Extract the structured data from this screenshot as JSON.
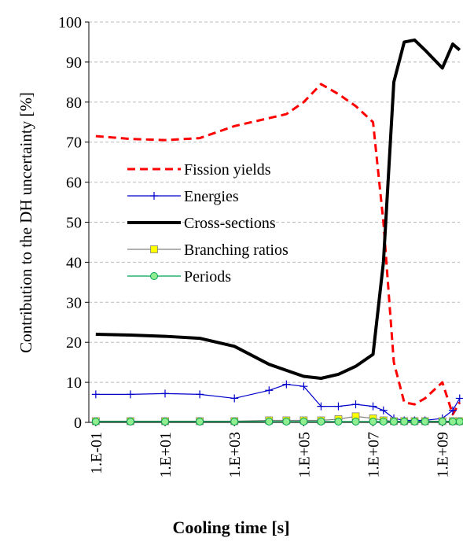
{
  "chart_data": {
    "type": "line",
    "xlabel": "Cooling time [s]",
    "ylabel": "Contribution to the DH uncertainty [%]",
    "x": [
      0.1,
      1,
      10,
      100,
      1000,
      10000,
      31623,
      100000,
      316228,
      1000000,
      3162278,
      10000000,
      19952623,
      39810717,
      79432823,
      158489319,
      316227766,
      1000000000,
      1995262315,
      3162277660
    ],
    "series": [
      {
        "name": "Fission yields",
        "color": "#ff0000",
        "style": "dashed",
        "marker": "none",
        "values": [
          71.5,
          70.8,
          70.5,
          71,
          74,
          76,
          77,
          80,
          84.5,
          82,
          79,
          75,
          50,
          15,
          5,
          4.5,
          6,
          10,
          2,
          5
        ]
      },
      {
        "name": "Energies",
        "color": "#0000cc",
        "style": "solid",
        "marker": "plus",
        "values": [
          7,
          7,
          7.2,
          7,
          6,
          8,
          9.5,
          9,
          4,
          4,
          4.5,
          4,
          3,
          1,
          0.5,
          0.5,
          0.5,
          1,
          3,
          6
        ]
      },
      {
        "name": "Cross-sections",
        "color": "#000000",
        "style": "bold",
        "marker": "none",
        "values": [
          22,
          21.8,
          21.5,
          21,
          19,
          14.5,
          13,
          11.5,
          11,
          12,
          14,
          17,
          40,
          85,
          95,
          95.5,
          93,
          88.5,
          94.5,
          93
        ]
      },
      {
        "name": "Branching ratios",
        "color": "#808080",
        "marker_color": "#ffff00",
        "style": "solid",
        "marker": "square",
        "values": [
          0.3,
          0.3,
          0.3,
          0.3,
          0.3,
          0.5,
          0.5,
          0.5,
          0.5,
          0.8,
          1.5,
          1,
          0.5,
          0.3,
          0.3,
          0.3,
          0.3,
          0.3,
          0.3,
          0.3
        ]
      },
      {
        "name": "Periods",
        "color": "#00a050",
        "marker_color": "#90ee90",
        "style": "solid",
        "marker": "circle",
        "values": [
          0.2,
          0.2,
          0.2,
          0.2,
          0.2,
          0.2,
          0.2,
          0.2,
          0.2,
          0.2,
          0.2,
          0.2,
          0.2,
          0.2,
          0.2,
          0.2,
          0.2,
          0.2,
          0.2,
          0.2
        ]
      }
    ],
    "xlog": true,
    "xlim": [
      0.063,
      3200000000
    ],
    "xticks": [
      {
        "value": 0.1,
        "label": "1.E-01"
      },
      {
        "value": 10,
        "label": "1.E+01"
      },
      {
        "value": 1000,
        "label": "1.E+03"
      },
      {
        "value": 100000,
        "label": "1.E+05"
      },
      {
        "value": 10000000,
        "label": "1.E+07"
      },
      {
        "value": 1000000000,
        "label": "1.E+09"
      }
    ],
    "ylim": [
      0,
      100
    ],
    "yticks": [
      0,
      10,
      20,
      30,
      40,
      50,
      60,
      70,
      80,
      90,
      100
    ],
    "grid": true,
    "legend": "center-left"
  }
}
